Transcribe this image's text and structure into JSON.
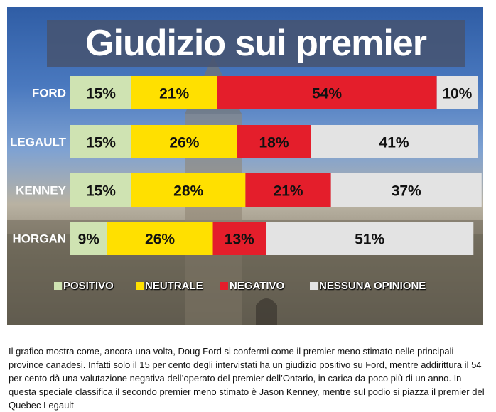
{
  "chart_data": {
    "type": "bar",
    "orientation": "horizontal",
    "stacked": true,
    "title": "Giudizio sui premier",
    "categories": [
      "FORD",
      "LEGAULT",
      "KENNEY",
      "HORGAN"
    ],
    "series": [
      {
        "name": "POSITIVO",
        "color": "#cfe3b2",
        "values": [
          15,
          15,
          15,
          9
        ],
        "labels": [
          "15%",
          "15%",
          "15%",
          "9%"
        ]
      },
      {
        "name": "NEUTRALE",
        "color": "#ffe000",
        "values": [
          21,
          26,
          28,
          26
        ],
        "labels": [
          "21%",
          "26%",
          "28%",
          "26%"
        ]
      },
      {
        "name": "NEGATIVO",
        "color": "#e41e2b",
        "values": [
          54,
          18,
          21,
          13
        ],
        "labels": [
          "54%",
          "18%",
          "21%",
          "13%"
        ]
      },
      {
        "name": "NESSUNA OPINIONE",
        "color": "#e3e3e3",
        "values": [
          10,
          41,
          37,
          51
        ],
        "labels": [
          "10%",
          "41%",
          "37%",
          "51%"
        ]
      }
    ],
    "legend": {
      "placement": "bottom",
      "entries": [
        {
          "text": "POSITIVO",
          "color": "#cfe3b2"
        },
        {
          "text": "NEUTRALE",
          "color": "#ffe000"
        },
        {
          "text": "NEGATIVO",
          "color": "#e41e2b"
        },
        {
          "text": "NESSUNA OPINIONE",
          "color": "#e3e3e3"
        }
      ]
    }
  },
  "caption": "Il grafico mostra come, ancora una volta, Doug Ford si confermi come il premier meno stimato nelle principali province canadesi. Infatti solo il 15 per cento degli intervistati ha un giudizio positivo su Ford, mentre addirittura il 54 per cento dà una valutazione negativa dell’operato del premier dell’Ontario, in carica da poco più di un anno. In questa speciale classifica il secondo premier meno stimato è Jason Kenney, mentre sul podio si piazza il premier del Quebec Legault"
}
